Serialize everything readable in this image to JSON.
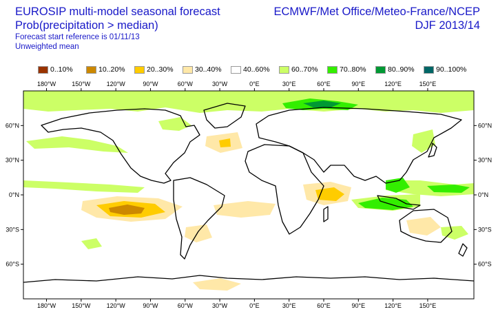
{
  "header": {
    "title": "EUROSIP multi-model seasonal forecast",
    "subtitle": "Prob(precipitation > median)",
    "forecast_ref": "Forecast start reference is 01/11/13",
    "weighting": "Unweighted mean",
    "centres": "ECMWF/Met Office/Meteo-France/NCEP",
    "season": "DJF 2013/14"
  },
  "legend": [
    {
      "label": "0..10%",
      "color": "#993300"
    },
    {
      "label": "10..20%",
      "color": "#cc8800"
    },
    {
      "label": "20..30%",
      "color": "#ffcc00"
    },
    {
      "label": "30..40%",
      "color": "#ffe8a8"
    },
    {
      "label": "40..60%",
      "color": "#ffffff"
    },
    {
      "label": "60..70%",
      "color": "#ccff66"
    },
    {
      "label": "70..80%",
      "color": "#33ee00"
    },
    {
      "label": "80..90%",
      "color": "#009933"
    },
    {
      "label": "90..100%",
      "color": "#006666"
    }
  ],
  "axes": {
    "lon_ticks": [
      "180°W",
      "150°W",
      "120°W",
      "90°W",
      "60°W",
      "30°W",
      "0°E",
      "30°E",
      "60°E",
      "90°E",
      "120°E",
      "150°E"
    ],
    "lon_values": [
      -180,
      -150,
      -120,
      -90,
      -60,
      -30,
      0,
      30,
      60,
      90,
      120,
      150
    ],
    "lat_ticks": [
      "60°N",
      "30°N",
      "0°N",
      "30°S",
      "60°S"
    ],
    "lat_values": [
      60,
      30,
      0,
      -30,
      -60
    ],
    "lon_range": [
      -200,
      190
    ],
    "lat_range": [
      -90,
      90
    ]
  }
}
